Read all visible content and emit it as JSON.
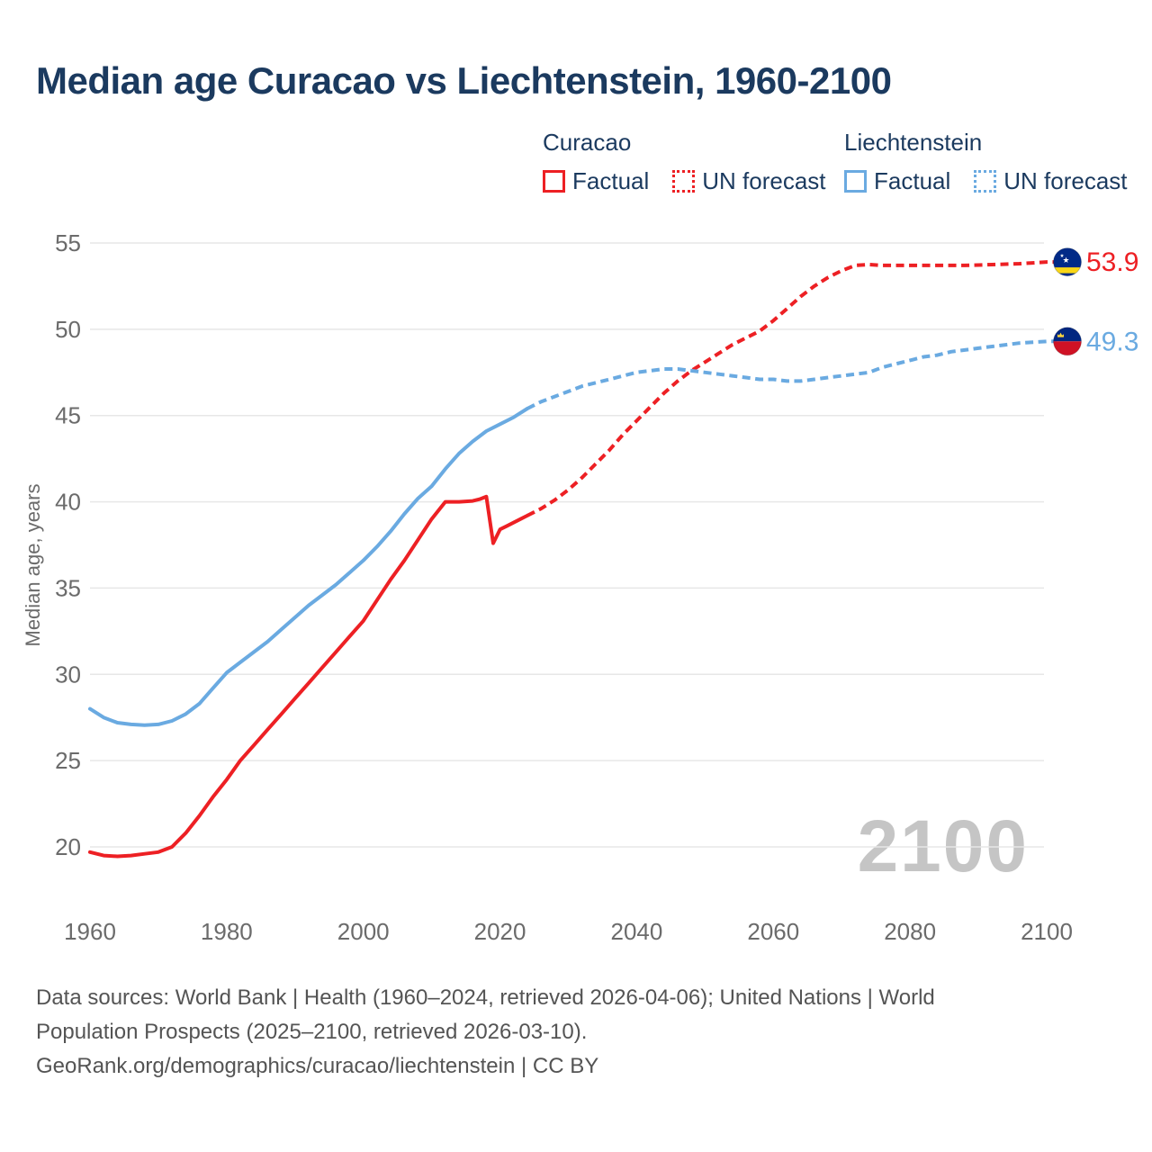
{
  "header": {
    "title": "Median age Curacao vs Liechtenstein, 1960-2100"
  },
  "colors": {
    "curacao": "#ed2024",
    "liechtenstein": "#6aaae1",
    "title_text": "#1b3a5f",
    "axis_text": "#6b6b6b",
    "grid": "#e7e7e7",
    "watermark": "#c5c5c5",
    "footer_text": "#545454",
    "flag_curacao_blue": "#012a87",
    "flag_curacao_yellow": "#f9d616",
    "flag_li_blue": "#012780",
    "flag_li_red": "#cf1225",
    "flag_li_crown": "#ffd83c"
  },
  "legend": {
    "groups": [
      {
        "name": "Curacao",
        "items": [
          {
            "label": "Factual",
            "style": "solid"
          },
          {
            "label": "UN forecast",
            "style": "dashed"
          }
        ]
      },
      {
        "name": "Liechtenstein",
        "items": [
          {
            "label": "Factual",
            "style": "solid"
          },
          {
            "label": "UN forecast",
            "style": "dashed"
          }
        ]
      }
    ]
  },
  "chart_data": {
    "type": "line",
    "title": "Median age Curacao vs Liechtenstein, 1960-2100",
    "xlabel": "",
    "ylabel": "Median age, years",
    "watermark": "2100",
    "grid": "horizontal",
    "legend_position": "top-right",
    "xlim": [
      1960,
      2100
    ],
    "ylim": [
      19,
      55
    ],
    "x_ticks": [
      1960,
      1980,
      2000,
      2020,
      2040,
      2060,
      2080,
      2100
    ],
    "y_ticks": [
      20,
      25,
      30,
      35,
      40,
      45,
      50,
      55
    ],
    "series": [
      {
        "name": "Curacao Factual",
        "color_key": "curacao",
        "style": "solid",
        "points": [
          [
            1960,
            19.7
          ],
          [
            1962,
            19.5
          ],
          [
            1964,
            19.45
          ],
          [
            1966,
            19.5
          ],
          [
            1968,
            19.6
          ],
          [
            1970,
            19.7
          ],
          [
            1972,
            20
          ],
          [
            1974,
            20.8
          ],
          [
            1976,
            21.8
          ],
          [
            1978,
            22.9
          ],
          [
            1980,
            23.9
          ],
          [
            1982,
            25
          ],
          [
            1984,
            25.9
          ],
          [
            1986,
            26.8
          ],
          [
            1988,
            27.7
          ],
          [
            1990,
            28.6
          ],
          [
            1992,
            29.5
          ],
          [
            1994,
            30.4
          ],
          [
            1996,
            31.3
          ],
          [
            1998,
            32.2
          ],
          [
            2000,
            33.1
          ],
          [
            2002,
            34.3
          ],
          [
            2004,
            35.5
          ],
          [
            2006,
            36.6
          ],
          [
            2008,
            37.8
          ],
          [
            2010,
            39
          ],
          [
            2012,
            40
          ],
          [
            2014,
            40
          ],
          [
            2016,
            40.05
          ],
          [
            2017,
            40.15
          ],
          [
            2018,
            40.3
          ],
          [
            2019,
            37.6
          ],
          [
            2020,
            38.4
          ],
          [
            2021,
            38.6
          ],
          [
            2022,
            38.8
          ],
          [
            2023,
            39
          ],
          [
            2024,
            39.2
          ]
        ]
      },
      {
        "name": "Curacao UN forecast",
        "color_key": "curacao",
        "style": "dashed",
        "extend_to_flag": true,
        "points": [
          [
            2024,
            39.2
          ],
          [
            2026,
            39.6
          ],
          [
            2028,
            40.1
          ],
          [
            2030,
            40.7
          ],
          [
            2032,
            41.4
          ],
          [
            2034,
            42.2
          ],
          [
            2036,
            43
          ],
          [
            2038,
            43.9
          ],
          [
            2040,
            44.7
          ],
          [
            2042,
            45.5
          ],
          [
            2044,
            46.3
          ],
          [
            2046,
            47
          ],
          [
            2048,
            47.6
          ],
          [
            2050,
            48.1
          ],
          [
            2052,
            48.6
          ],
          [
            2054,
            49.1
          ],
          [
            2056,
            49.5
          ],
          [
            2058,
            49.9
          ],
          [
            2060,
            50.5
          ],
          [
            2062,
            51.2
          ],
          [
            2064,
            51.9
          ],
          [
            2066,
            52.5
          ],
          [
            2068,
            53
          ],
          [
            2070,
            53.4
          ],
          [
            2072,
            53.7
          ],
          [
            2074,
            53.75
          ],
          [
            2076,
            53.7
          ],
          [
            2078,
            53.7
          ],
          [
            2080,
            53.7
          ],
          [
            2084,
            53.7
          ],
          [
            2088,
            53.7
          ],
          [
            2092,
            53.75
          ],
          [
            2096,
            53.8
          ],
          [
            2100,
            53.9
          ]
        ]
      },
      {
        "name": "Liechtenstein Factual",
        "color_key": "liechtenstein",
        "style": "solid",
        "points": [
          [
            1960,
            28
          ],
          [
            1962,
            27.5
          ],
          [
            1964,
            27.2
          ],
          [
            1966,
            27.1
          ],
          [
            1968,
            27.05
          ],
          [
            1970,
            27.1
          ],
          [
            1972,
            27.3
          ],
          [
            1974,
            27.7
          ],
          [
            1976,
            28.3
          ],
          [
            1978,
            29.2
          ],
          [
            1980,
            30.1
          ],
          [
            1982,
            30.7
          ],
          [
            1984,
            31.3
          ],
          [
            1986,
            31.9
          ],
          [
            1988,
            32.6
          ],
          [
            1990,
            33.3
          ],
          [
            1992,
            34
          ],
          [
            1994,
            34.6
          ],
          [
            1996,
            35.2
          ],
          [
            1998,
            35.9
          ],
          [
            2000,
            36.6
          ],
          [
            2002,
            37.4
          ],
          [
            2004,
            38.3
          ],
          [
            2006,
            39.3
          ],
          [
            2008,
            40.2
          ],
          [
            2010,
            40.9
          ],
          [
            2012,
            41.9
          ],
          [
            2014,
            42.8
          ],
          [
            2016,
            43.5
          ],
          [
            2018,
            44.1
          ],
          [
            2020,
            44.5
          ],
          [
            2022,
            44.9
          ],
          [
            2024,
            45.4
          ]
        ]
      },
      {
        "name": "Liechtenstein UN forecast",
        "color_key": "liechtenstein",
        "style": "dashed",
        "extend_to_flag": true,
        "points": [
          [
            2024,
            45.4
          ],
          [
            2026,
            45.8
          ],
          [
            2028,
            46.1
          ],
          [
            2030,
            46.4
          ],
          [
            2032,
            46.7
          ],
          [
            2034,
            46.9
          ],
          [
            2036,
            47.1
          ],
          [
            2038,
            47.3
          ],
          [
            2040,
            47.5
          ],
          [
            2042,
            47.6
          ],
          [
            2044,
            47.7
          ],
          [
            2046,
            47.7
          ],
          [
            2048,
            47.6
          ],
          [
            2050,
            47.5
          ],
          [
            2052,
            47.4
          ],
          [
            2054,
            47.3
          ],
          [
            2056,
            47.2
          ],
          [
            2058,
            47.1
          ],
          [
            2060,
            47.1
          ],
          [
            2062,
            47
          ],
          [
            2064,
            47
          ],
          [
            2066,
            47.1
          ],
          [
            2068,
            47.2
          ],
          [
            2070,
            47.3
          ],
          [
            2072,
            47.4
          ],
          [
            2074,
            47.5
          ],
          [
            2076,
            47.8
          ],
          [
            2078,
            48
          ],
          [
            2080,
            48.2
          ],
          [
            2082,
            48.4
          ],
          [
            2084,
            48.5
          ],
          [
            2086,
            48.7
          ],
          [
            2088,
            48.8
          ],
          [
            2090,
            48.9
          ],
          [
            2092,
            49
          ],
          [
            2094,
            49.1
          ],
          [
            2096,
            49.2
          ],
          [
            2098,
            49.25
          ],
          [
            2100,
            49.3
          ]
        ]
      }
    ],
    "end_labels": [
      {
        "series": "Curacao",
        "value": "53.9",
        "color_key": "curacao",
        "flag": "curacao"
      },
      {
        "series": "Liechtenstein",
        "value": "49.3",
        "color_key": "liechtenstein",
        "flag": "liechtenstein"
      }
    ]
  },
  "footer": {
    "lines": [
      "Data sources: World Bank | Health (1960–2024, retrieved 2026-04-06); United Nations | World",
      "Population Prospects (2025–2100, retrieved 2026-03-10).",
      "GeoRank.org/demographics/curacao/liechtenstein | CC BY"
    ]
  }
}
